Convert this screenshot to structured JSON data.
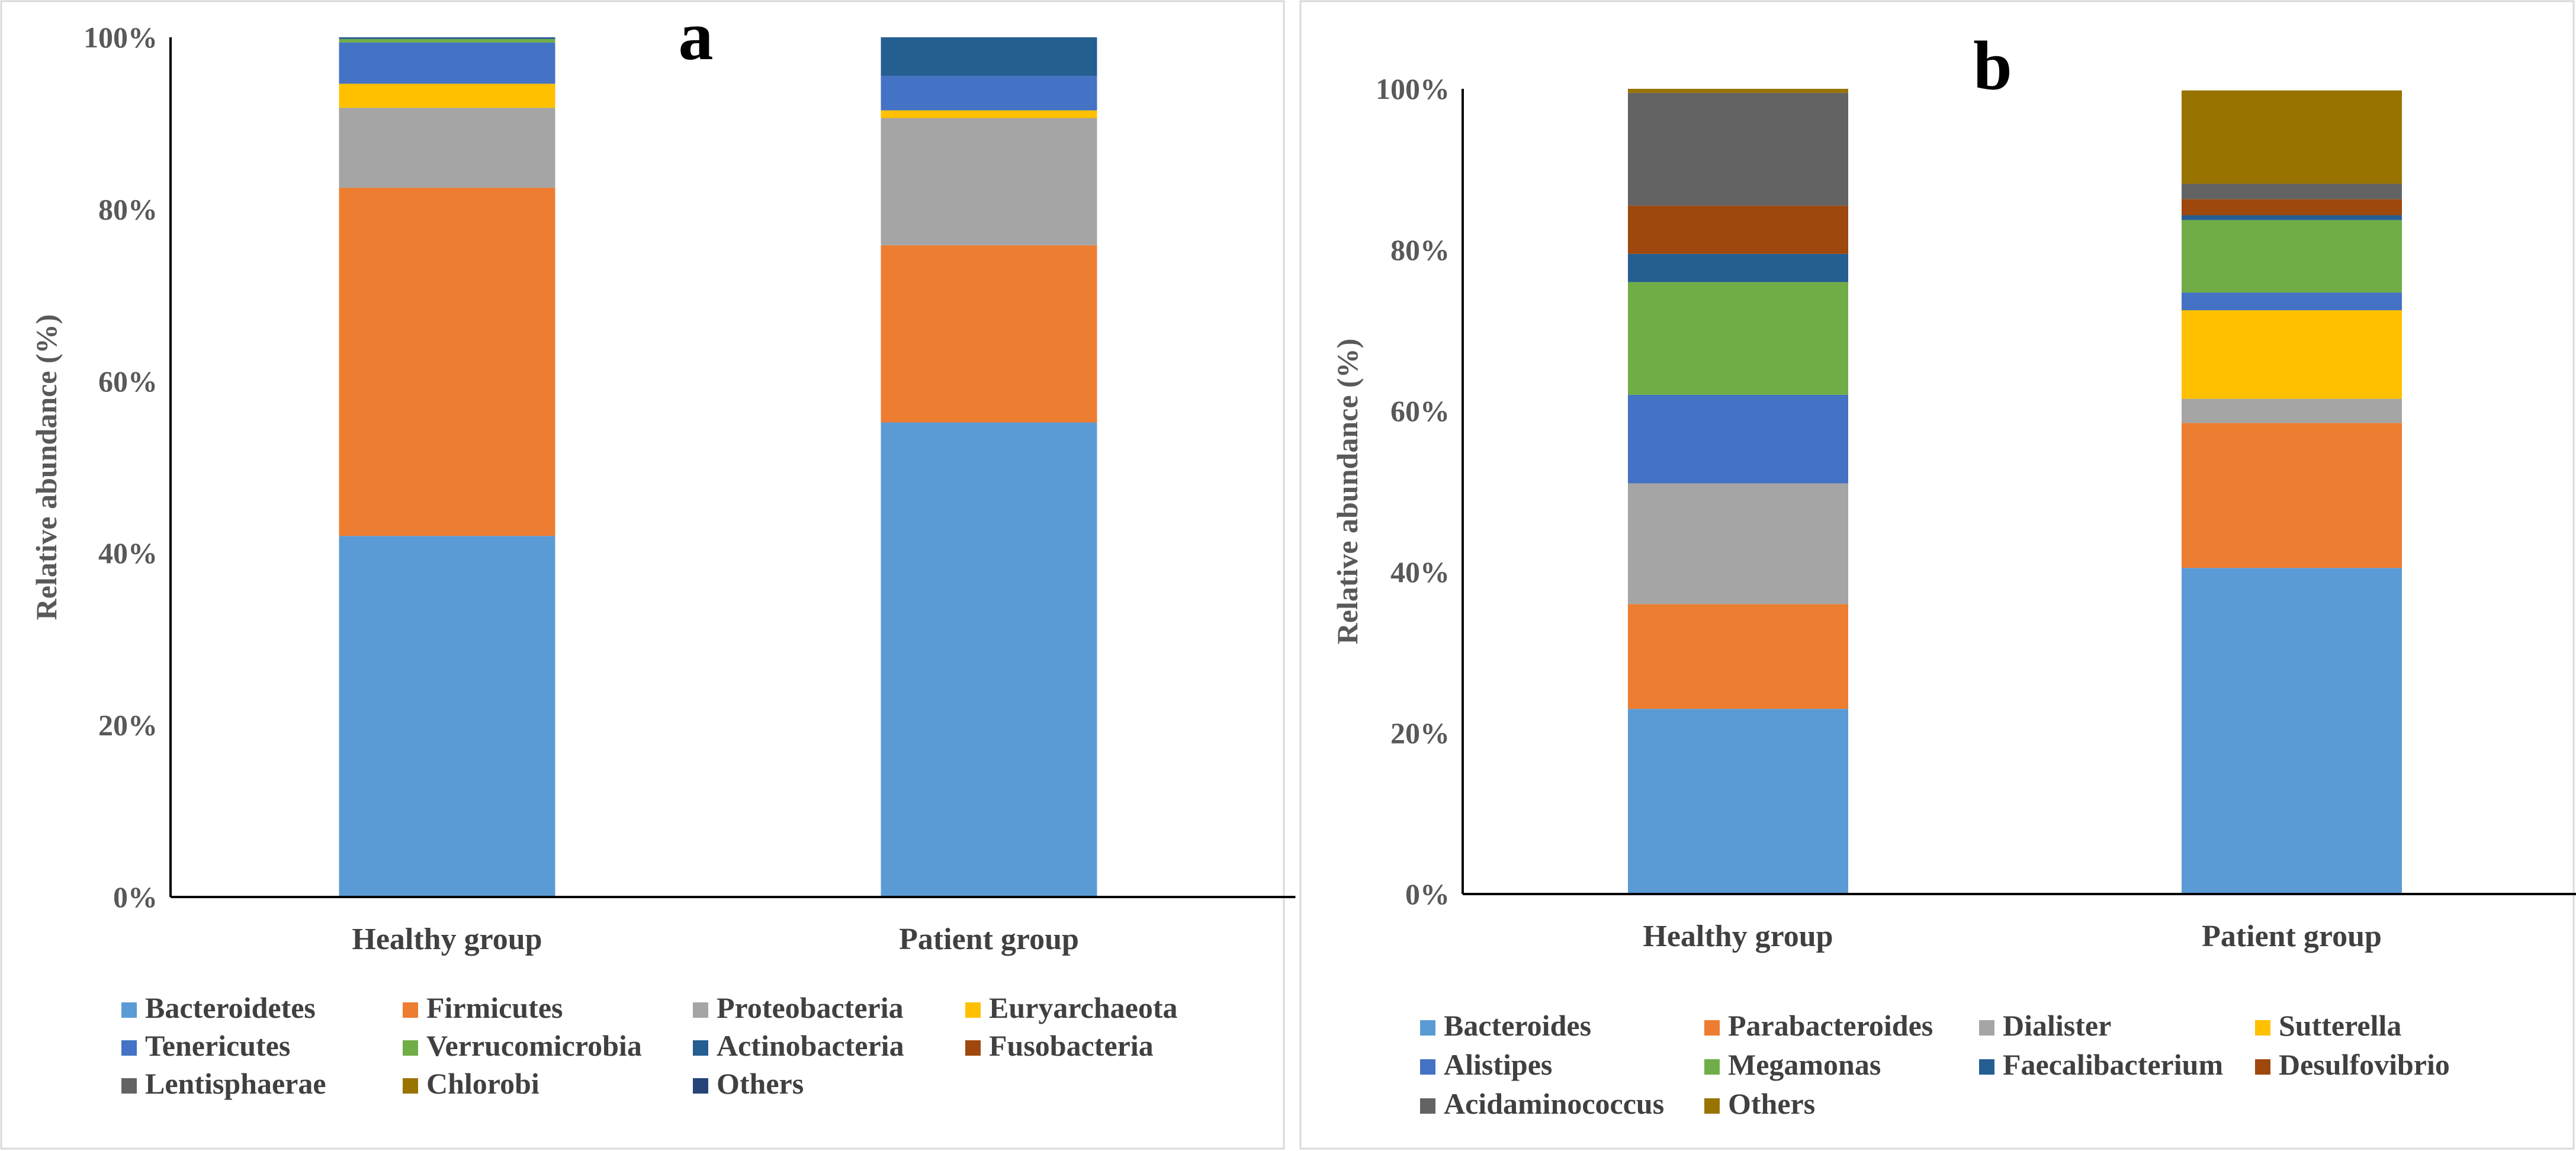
{
  "chart_data": [
    {
      "type": "bar",
      "stacked": true,
      "panel_label": "a",
      "title": "",
      "xlabel": "",
      "ylabel": "Relative abundance (%)",
      "ylim": [
        0,
        100
      ],
      "y_ticks": [
        "0%",
        "20%",
        "40%",
        "60%",
        "80%",
        "100%"
      ],
      "categories": [
        "Healthy group",
        "Patient group"
      ],
      "legend_columns": 4,
      "series": [
        {
          "name": "Bacteroidetes",
          "color": "#5b9bd5",
          "values": [
            42.0,
            55.2
          ]
        },
        {
          "name": "Firmicutes",
          "color": "#ed7d31",
          "values": [
            40.5,
            20.6
          ]
        },
        {
          "name": "Proteobacteria",
          "color": "#a5a5a5",
          "values": [
            9.3,
            14.8
          ]
        },
        {
          "name": "Euryarchaeota",
          "color": "#ffc000",
          "values": [
            2.8,
            0.9
          ]
        },
        {
          "name": "Tenericutes",
          "color": "#4472c4",
          "values": [
            4.8,
            4.0
          ]
        },
        {
          "name": "Verrucomicrobia",
          "color": "#70ad47",
          "values": [
            0.4,
            0.0
          ]
        },
        {
          "name": "Actinobacteria",
          "color": "#255e91",
          "values": [
            0.2,
            4.5
          ]
        },
        {
          "name": "Fusobacteria",
          "color": "#9e480e",
          "values": [
            0.0,
            0.0
          ]
        },
        {
          "name": "Lentisphaerae",
          "color": "#636363",
          "values": [
            0.0,
            0.0
          ]
        },
        {
          "name": "Chlorobi",
          "color": "#997300",
          "values": [
            0.0,
            0.0
          ]
        },
        {
          "name": "Others",
          "color": "#264478",
          "values": [
            0.0,
            0.0
          ]
        }
      ]
    },
    {
      "type": "bar",
      "stacked": true,
      "panel_label": "b",
      "title": "",
      "xlabel": "",
      "ylabel": "Relative abundance (%)",
      "ylim": [
        0,
        100
      ],
      "y_ticks": [
        "0%",
        "20%",
        "40%",
        "60%",
        "80%",
        "100%"
      ],
      "categories": [
        "Healthy group",
        "Patient group"
      ],
      "legend_columns": 4,
      "series": [
        {
          "name": "Bacteroides",
          "color": "#5b9bd5",
          "values": [
            23.0,
            40.5
          ]
        },
        {
          "name": "Parabacteroides",
          "color": "#ed7d31",
          "values": [
            13.0,
            18.0
          ]
        },
        {
          "name": "Dialister",
          "color": "#a5a5a5",
          "values": [
            15.0,
            3.0
          ]
        },
        {
          "name": "Sutterella",
          "color": "#ffc000",
          "values": [
            0.0,
            11.0
          ]
        },
        {
          "name": "Alistipes",
          "color": "#4472c4",
          "values": [
            11.0,
            2.2
          ]
        },
        {
          "name": "Megamonas",
          "color": "#70ad47",
          "values": [
            14.0,
            9.0
          ]
        },
        {
          "name": "Faecalibacterium",
          "color": "#255e91",
          "values": [
            3.5,
            0.6
          ]
        },
        {
          "name": "Desulfovibrio",
          "color": "#9e480e",
          "values": [
            6.0,
            2.0
          ]
        },
        {
          "name": "Acidaminococcus",
          "color": "#636363",
          "values": [
            14.0,
            1.9
          ]
        },
        {
          "name": "Others",
          "color": "#997300",
          "values": [
            0.5,
            11.6
          ]
        }
      ]
    }
  ]
}
